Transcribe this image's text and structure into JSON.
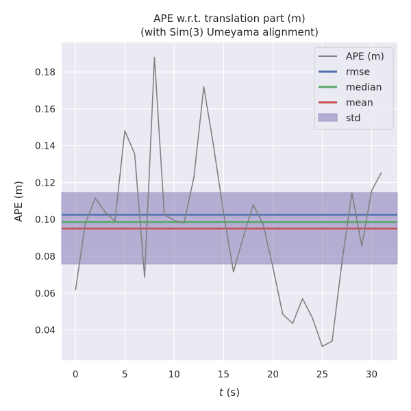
{
  "chart_data": {
    "type": "line",
    "title": "APE w.r.t. translation part (m)",
    "subtitle": "(with Sim(3) Umeyama alignment)",
    "xlabel_var": "t",
    "xlabel_unit": " (s)",
    "ylabel": "APE (m)",
    "xlim": [
      -1.4,
      32.6
    ],
    "ylim": [
      0.0235,
      0.196
    ],
    "xticks": [
      0,
      5,
      10,
      15,
      20,
      25,
      30
    ],
    "yticks": [
      0.04,
      0.06,
      0.08,
      0.1,
      0.12,
      0.14,
      0.16,
      0.18
    ],
    "ytick_labels": [
      "0.04",
      "0.06",
      "0.08",
      "0.10",
      "0.12",
      "0.14",
      "0.16",
      "0.18"
    ],
    "grid": true,
    "legend_position": "top-right",
    "series": [
      {
        "name": "APE (m)",
        "color": "#808080",
        "x": [
          0,
          1,
          2,
          3,
          4,
          5,
          6,
          7,
          8,
          9,
          10,
          11,
          12,
          13,
          14,
          15,
          16,
          17,
          18,
          19,
          20,
          21,
          22,
          23,
          24,
          25,
          26,
          27,
          28,
          29,
          30,
          31
        ],
        "values": [
          0.0615,
          0.098,
          0.1115,
          0.104,
          0.099,
          0.148,
          0.1355,
          0.0685,
          0.188,
          0.1025,
          0.0995,
          0.098,
          0.123,
          0.172,
          0.1395,
          0.1035,
          0.0715,
          0.0905,
          0.108,
          0.0975,
          0.074,
          0.0485,
          0.0435,
          0.057,
          0.0465,
          0.031,
          0.034,
          0.077,
          0.1145,
          0.0855,
          0.1155,
          0.1255
        ]
      }
    ],
    "stats": [
      {
        "name": "rmse",
        "value": 0.1025,
        "color": "#4c72b0"
      },
      {
        "name": "median",
        "value": 0.0985,
        "color": "#55a868"
      },
      {
        "name": "mean",
        "value": 0.095,
        "color": "#c44e52"
      }
    ],
    "std_band": {
      "name": "std",
      "low": 0.0758,
      "high": 0.1145,
      "color": "#8172b2"
    }
  }
}
